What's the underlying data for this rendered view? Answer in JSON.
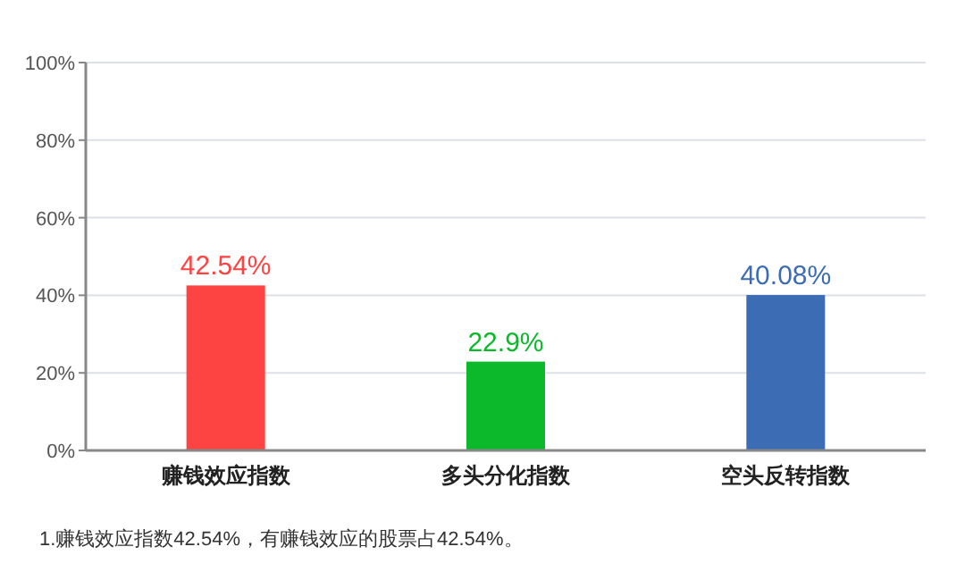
{
  "chart_data": {
    "type": "bar",
    "categories": [
      "赚钱效应指数",
      "多头分化指数",
      "空头反转指数"
    ],
    "values": [
      42.54,
      22.9,
      40.08
    ],
    "colors": [
      "#fe4343",
      "#0bb92a",
      "#3c6db4"
    ],
    "value_labels": [
      "42.54%",
      "22.9%",
      "40.08%"
    ],
    "ylim": [
      0,
      100
    ],
    "yticks": [
      {
        "value": 0,
        "label": "0%"
      },
      {
        "value": 20,
        "label": "20%"
      },
      {
        "value": 40,
        "label": "40%"
      },
      {
        "value": 60,
        "label": "60%"
      },
      {
        "value": 80,
        "label": "80%"
      },
      {
        "value": 100,
        "label": "100%"
      }
    ],
    "grid": "y",
    "annotations": [
      "1.赚钱效应指数42.54%，有赚钱效应的股票占42.54%。"
    ]
  }
}
